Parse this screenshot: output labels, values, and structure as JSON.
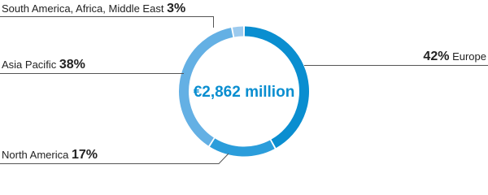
{
  "chart_data": {
    "type": "donut",
    "center_label": "€2,862 million",
    "categories": [
      "Europe",
      "North America",
      "Asia Pacific",
      "South America, Africa, Middle East"
    ],
    "values": [
      42,
      17,
      38,
      3
    ],
    "value_labels": [
      "42%",
      "17%",
      "38%",
      "3%"
    ],
    "colors": [
      "#0a8ed0",
      "#2b9ddb",
      "#64b0e4",
      "#9ccaee"
    ]
  }
}
